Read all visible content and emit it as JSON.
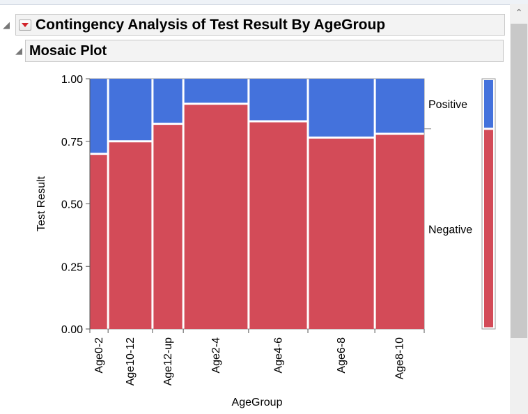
{
  "report": {
    "title": "Contingency Analysis of Test Result By AgeGroup",
    "subtitle": "Mosaic Plot"
  },
  "icons": {
    "disclosure": "disclosure-triangle-icon",
    "menu": "red-triangle-menu-icon",
    "scroll_up": "chevron-up-icon"
  },
  "colors": {
    "positive": "#4472dc",
    "negative": "#d34b58"
  },
  "chart_data": {
    "type": "mosaic",
    "title": "Mosaic Plot",
    "xlabel": "AgeGroup",
    "ylabel": "Test Result",
    "ylim": [
      0,
      1
    ],
    "yticks": [
      "0.00",
      "0.25",
      "0.50",
      "0.75",
      "1.00"
    ],
    "categories": [
      "Age0-2",
      "Age10-12",
      "Age12-up",
      "Age2-4",
      "Age4-6",
      "Age6-8",
      "Age8-10"
    ],
    "category_share": [
      0.055,
      0.134,
      0.093,
      0.197,
      0.179,
      0.202,
      0.149
    ],
    "series": [
      {
        "name": "Negative",
        "values": [
          0.7,
          0.75,
          0.82,
          0.9,
          0.83,
          0.765,
          0.78
        ]
      },
      {
        "name": "Positive",
        "values": [
          0.3,
          0.25,
          0.18,
          0.1,
          0.17,
          0.235,
          0.22
        ]
      }
    ],
    "overall": {
      "Negative": 0.8,
      "Positive": 0.2
    }
  }
}
